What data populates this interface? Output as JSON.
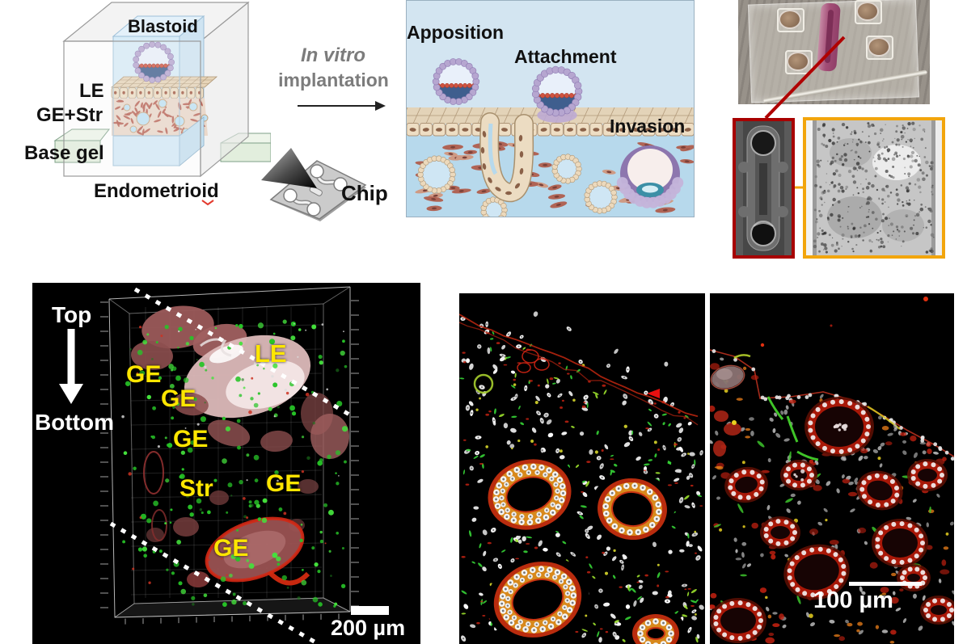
{
  "schematic": {
    "label_blastoid": "Blastoid",
    "label_le": "LE",
    "label_ge_str": "GE+Str",
    "label_base_gel": "Base gel",
    "label_endometrioid": "Endometrioid"
  },
  "flow": {
    "line1": "In vitro",
    "line2": "implantation",
    "chip_label": "Chip"
  },
  "implantation_stages": {
    "apposition": "Apposition",
    "attachment": "Attachment",
    "invasion": "Invasion"
  },
  "confocal_3d": {
    "orientation_top": "Top",
    "orientation_bottom": "Bottom",
    "label_le": "LE",
    "label_ge": "GE",
    "label_str": "Str",
    "scale_bar": "200 µm"
  },
  "histology": {
    "scale_bar": "100 µm"
  },
  "colors": {
    "annotation_yellow": "#ffe600",
    "inset_border_red": "#a80000",
    "inset_border_orange": "#f2a50c",
    "connector_red": "#b00000",
    "connector_orange": "#f2a50c",
    "flow_text_gray": "#7c7c7c",
    "scale_bar_white": "#ffffff",
    "confocal_green": "#2ecc2e",
    "stain_red": "#c1270f",
    "diagram_sky": "#d3e5f1",
    "diagram_stroma": "#b7d9ec"
  }
}
